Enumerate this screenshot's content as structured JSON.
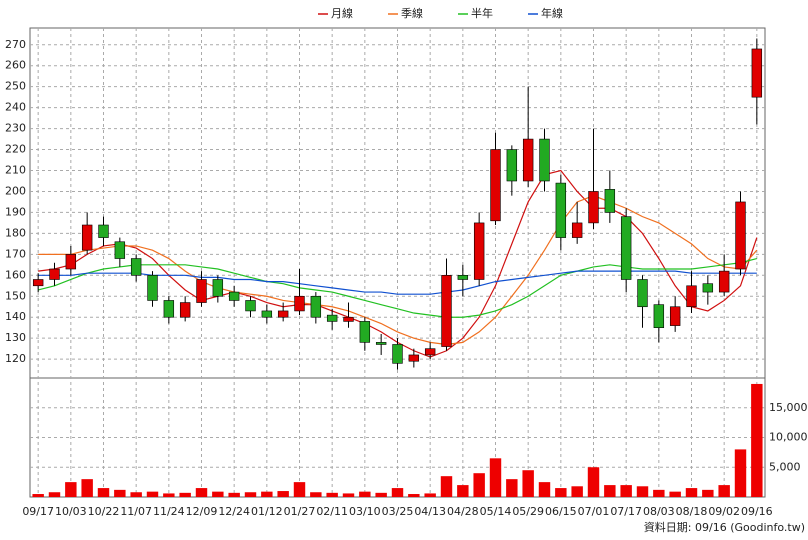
{
  "chart_data": {
    "type": "candlestick",
    "categories": [
      "09/17",
      null,
      "10/03",
      null,
      "10/22",
      null,
      "11/07",
      null,
      "11/24",
      null,
      "12/09",
      null,
      "12/24",
      null,
      "01/12",
      null,
      "01/27",
      null,
      "02/11",
      null,
      "03/10",
      null,
      "03/25",
      null,
      "04/13",
      null,
      "04/28",
      null,
      "05/14",
      null,
      "05/29",
      null,
      "06/15",
      null,
      "07/01",
      null,
      "07/17",
      null,
      "08/03",
      null,
      "08/18",
      null,
      "09/02",
      null,
      "09/16"
    ],
    "open": [
      155,
      158,
      163,
      172,
      184,
      176,
      168,
      160,
      148,
      140,
      147,
      158,
      152,
      148,
      143,
      140,
      143,
      150,
      141,
      138,
      138,
      128,
      127,
      119,
      122,
      126,
      160,
      158,
      186,
      220,
      205,
      225,
      204,
      178,
      185,
      201,
      188,
      158,
      146,
      136,
      145,
      156,
      152,
      163,
      245
    ],
    "high": [
      161,
      166,
      174,
      190,
      188,
      178,
      170,
      162,
      150,
      150,
      162,
      160,
      155,
      150,
      146,
      147,
      163,
      152,
      144,
      147,
      140,
      132,
      130,
      125,
      128,
      168,
      165,
      190,
      228,
      222,
      250,
      230,
      208,
      195,
      230,
      210,
      192,
      160,
      148,
      150,
      162,
      160,
      170,
      200,
      273
    ],
    "low": [
      152,
      155,
      160,
      170,
      174,
      164,
      157,
      145,
      137,
      138,
      145,
      147,
      145,
      140,
      137,
      138,
      141,
      137,
      134,
      135,
      124,
      122,
      115,
      116,
      120,
      124,
      150,
      155,
      184,
      198,
      202,
      200,
      172,
      175,
      182,
      185,
      152,
      135,
      128,
      133,
      142,
      146,
      150,
      160,
      232
    ],
    "close": [
      158,
      163,
      170,
      184,
      178,
      168,
      160,
      148,
      140,
      147,
      158,
      150,
      148,
      143,
      140,
      143,
      150,
      140,
      138,
      140,
      128,
      127,
      118,
      122,
      125,
      160,
      158,
      185,
      220,
      205,
      225,
      205,
      178,
      185,
      200,
      190,
      158,
      145,
      135,
      145,
      155,
      152,
      162,
      195,
      268
    ],
    "up_color": "#e00000",
    "down_color": "#22aa22",
    "series": [
      {
        "name": "月線",
        "color": "#d01010",
        "values": [
          162,
          163,
          165,
          170,
          174,
          175,
          173,
          168,
          160,
          153,
          148,
          150,
          152,
          150,
          147,
          145,
          146,
          146,
          143,
          140,
          137,
          133,
          128,
          124,
          121,
          124,
          130,
          140,
          155,
          175,
          195,
          208,
          210,
          200,
          192,
          192,
          188,
          180,
          168,
          155,
          145,
          143,
          148,
          155,
          178
        ]
      },
      {
        "name": "季線",
        "color": "#f07020",
        "values": [
          170,
          170,
          170,
          172,
          173,
          174,
          174,
          172,
          168,
          162,
          157,
          154,
          152,
          151,
          150,
          148,
          147,
          146,
          145,
          143,
          140,
          137,
          133,
          130,
          128,
          127,
          128,
          133,
          140,
          150,
          160,
          172,
          185,
          195,
          198,
          195,
          192,
          188,
          185,
          180,
          175,
          168,
          164,
          163,
          172
        ]
      },
      {
        "name": "半年",
        "color": "#22c022",
        "values": [
          153,
          155,
          158,
          161,
          163,
          164,
          165,
          165,
          165,
          165,
          164,
          163,
          161,
          159,
          157,
          156,
          154,
          153,
          152,
          150,
          148,
          146,
          144,
          142,
          141,
          140,
          140,
          141,
          143,
          146,
          150,
          155,
          160,
          162,
          164,
          165,
          164,
          163,
          163,
          163,
          163,
          164,
          165,
          166,
          168
        ]
      },
      {
        "name": "年線",
        "color": "#1050d0",
        "values": [
          160,
          160,
          160,
          161,
          161,
          161,
          161,
          160,
          160,
          160,
          159,
          159,
          158,
          158,
          157,
          157,
          156,
          155,
          154,
          153,
          152,
          152,
          151,
          151,
          151,
          152,
          153,
          155,
          157,
          158,
          159,
          160,
          161,
          162,
          162,
          162,
          162,
          162,
          162,
          162,
          161,
          161,
          161,
          161,
          161
        ]
      }
    ],
    "ylim": [
      111,
      278
    ],
    "yticks": [
      120,
      130,
      140,
      150,
      160,
      170,
      180,
      190,
      200,
      210,
      220,
      230,
      240,
      250,
      260,
      270
    ],
    "volume": {
      "color": "#ee0000",
      "values": [
        500,
        800,
        2500,
        3000,
        1500,
        1200,
        800,
        900,
        600,
        700,
        1500,
        900,
        700,
        800,
        900,
        1000,
        2500,
        800,
        700,
        600,
        900,
        700,
        1500,
        500,
        600,
        3500,
        2000,
        4000,
        6500,
        3000,
        4500,
        2500,
        1500,
        1800,
        5000,
        2000,
        2000,
        1800,
        1200,
        900,
        1500,
        1200,
        2000,
        8000,
        19000
      ],
      "ylim": [
        0,
        20000
      ],
      "yticks": [
        {
          "value": 5000,
          "label": "5,000"
        },
        {
          "value": 10000,
          "label": "10,000"
        },
        {
          "value": 15000,
          "label": "15,000"
        }
      ]
    },
    "grid": true,
    "source": "資料日期: 09/16 (Goodinfo.tw)"
  }
}
